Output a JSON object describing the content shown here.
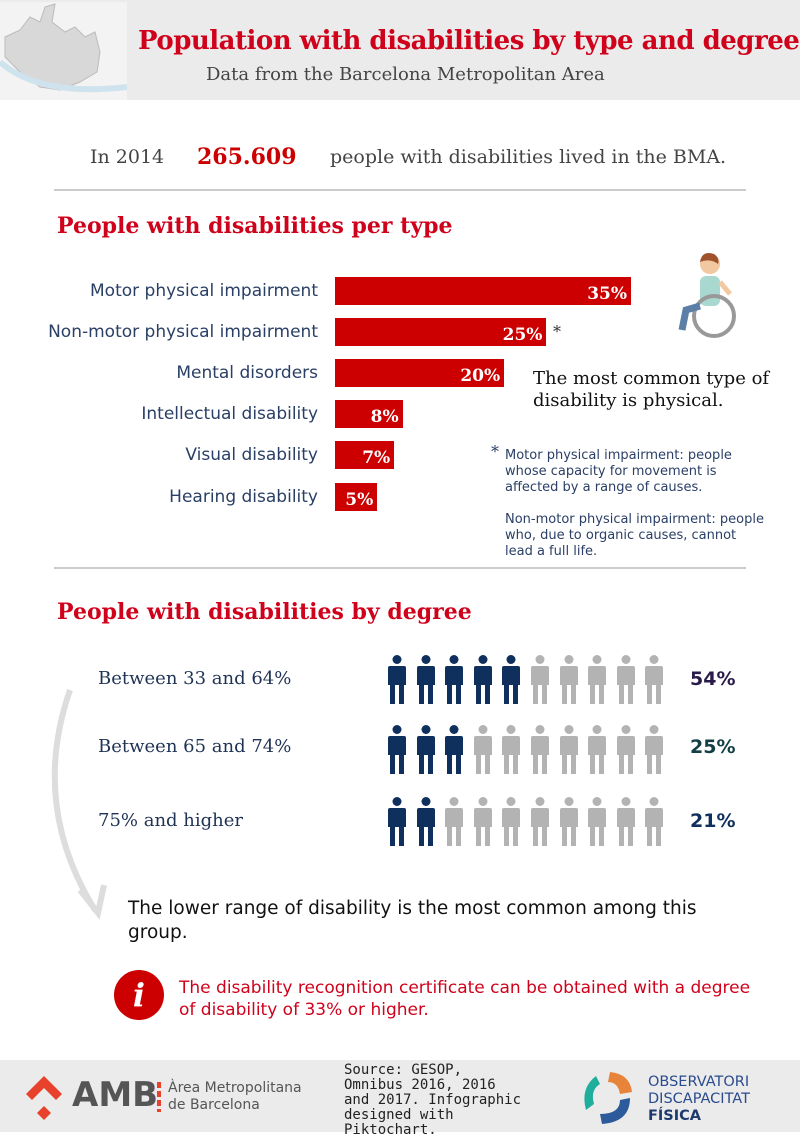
{
  "header": {
    "title": "Population with disabilities by type and degree",
    "subtitle": "Data from the Barcelona Metropolitan Area"
  },
  "summary": {
    "prefix": "In 2014",
    "count": "265.609",
    "suffix": "people with disabilities lived in the BMA."
  },
  "chart_data": [
    {
      "type": "bar",
      "title": "People with disabilities per type",
      "orientation": "horizontal",
      "categories": [
        "Motor physical impairment",
        "Non-motor physical impairment",
        "Mental disorders",
        "Intellectual disability",
        "Visual disability",
        "Hearing disability"
      ],
      "values": [
        35,
        25,
        20,
        8,
        7,
        5
      ],
      "labels": [
        "35%",
        "25%",
        "20%",
        "8%",
        "7%",
        "5%"
      ],
      "unit": "%"
    },
    {
      "type": "bar",
      "title": "People with disabilities by degree",
      "style": "pictogram (10 icons per row)",
      "categories": [
        "Between 33 and 64%",
        "Between 65 and 74%",
        "75% and higher"
      ],
      "values": [
        54,
        25,
        21
      ],
      "labels": [
        "54%",
        "25%",
        "21%"
      ],
      "filled_icons": [
        5,
        3,
        2
      ],
      "total_icons": 10
    }
  ],
  "type_section": {
    "asterisk": "*",
    "common_note": "The most common type of disability is physical.",
    "note1": "Motor physical impairment: people whose capacity for movement is affected by a range of causes.",
    "note2": "Non-motor physical impairment: people who, due to organic causes, cannot lead a full life."
  },
  "degree_section": {
    "conclusion": "The lower range of disability is the most common among this group."
  },
  "info": {
    "icon": "i",
    "text": "The disability recognition certificate can be obtained with a degree of disability of 33% or higher."
  },
  "footer": {
    "amb_logo": "AMB",
    "amb_name_1": "Àrea Metropolitana",
    "amb_name_2": "de Barcelona",
    "source": "Source:  GESOP, Omnibus 2016, 2016 and 2017. Infographic designed with Piktochart.",
    "obs_1": "OBSERVATORI",
    "obs_2": "DISCAPACITAT",
    "obs_3": "FÍSICA"
  },
  "colors": {
    "accent": "#cc0000",
    "navy": "#0f2f5c",
    "gray": "#b3b3b3",
    "val1": "#2a1a4a",
    "val2": "#113f44",
    "val3": "#0f2f5c"
  }
}
